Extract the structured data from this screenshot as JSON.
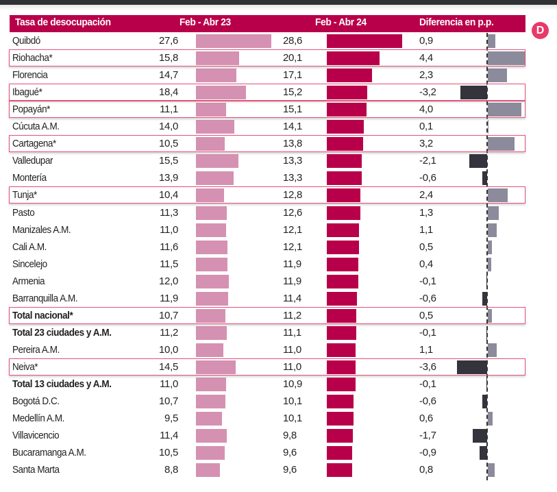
{
  "chart_data": {
    "type": "table",
    "title": "Tasa de desocupación",
    "columns": [
      "Tasa de desocupación",
      "Feb - Abr 23",
      "Feb - Abr 24",
      "Diferencia en p.p."
    ],
    "series": [
      {
        "name": "Feb - Abr 23",
        "color": "#d591b2"
      },
      {
        "name": "Feb - Abr 24",
        "color": "#b8004a"
      },
      {
        "name": "Diferencia en p.p.",
        "color_positive": "#8c8b9b",
        "color_negative": "#33343c"
      }
    ],
    "rows": [
      {
        "label": "Quibdó",
        "v23": "27,6",
        "v24": "28,6",
        "diff": "0,9",
        "bold": false,
        "highlight": false
      },
      {
        "label": "Riohacha*",
        "v23": "15,8",
        "v24": "20,1",
        "diff": "4,4",
        "bold": false,
        "highlight": true
      },
      {
        "label": "Florencia",
        "v23": "14,7",
        "v24": "17,1",
        "diff": "2,3",
        "bold": false,
        "highlight": false
      },
      {
        "label": "Ibagué*",
        "v23": "18,4",
        "v24": "15,2",
        "diff": "-3,2",
        "bold": false,
        "highlight": true
      },
      {
        "label": "Popayán*",
        "v23": "11,1",
        "v24": "15,1",
        "diff": "4,0",
        "bold": false,
        "highlight": true
      },
      {
        "label": "Cúcuta A.M.",
        "v23": "14,0",
        "v24": "14,1",
        "diff": "0,1",
        "bold": false,
        "highlight": false
      },
      {
        "label": "Cartagena*",
        "v23": "10,5",
        "v24": "13,8",
        "diff": "3,2",
        "bold": false,
        "highlight": true
      },
      {
        "label": "Valledupar",
        "v23": "15,5",
        "v24": "13,3",
        "diff": "-2,1",
        "bold": false,
        "highlight": false
      },
      {
        "label": "Montería",
        "v23": "13,9",
        "v24": "13,3",
        "diff": "-0,6",
        "bold": false,
        "highlight": false
      },
      {
        "label": "Tunja*",
        "v23": "10,4",
        "v24": "12,8",
        "diff": "2,4",
        "bold": false,
        "highlight": true
      },
      {
        "label": "Pasto",
        "v23": "11,3",
        "v24": "12,6",
        "diff": "1,3",
        "bold": false,
        "highlight": false
      },
      {
        "label": "Manizales A.M.",
        "v23": "11,0",
        "v24": "12,1",
        "diff": "1,1",
        "bold": false,
        "highlight": false
      },
      {
        "label": "Cali A.M.",
        "v23": "11,6",
        "v24": "12,1",
        "diff": "0,5",
        "bold": false,
        "highlight": false
      },
      {
        "label": "Sincelejo",
        "v23": "11,5",
        "v24": "11,9",
        "diff": "0,4",
        "bold": false,
        "highlight": false
      },
      {
        "label": "Armenia",
        "v23": "12,0",
        "v24": "11,9",
        "diff": "-0,1",
        "bold": false,
        "highlight": false
      },
      {
        "label": "Barranquilla A.M.",
        "v23": "11,9",
        "v24": "11,4",
        "diff": "-0,6",
        "bold": false,
        "highlight": false
      },
      {
        "label": "Total nacional*",
        "v23": "10,7",
        "v24": "11,2",
        "diff": "0,5",
        "bold": true,
        "highlight": true
      },
      {
        "label": "Total 23 ciudades y A.M.",
        "v23": "11,2",
        "v24": "11,1",
        "diff": "-0,1",
        "bold": true,
        "highlight": false
      },
      {
        "label": "Pereira A.M.",
        "v23": "10,0",
        "v24": "11,0",
        "diff": "1,1",
        "bold": false,
        "highlight": false
      },
      {
        "label": "Neiva*",
        "v23": "14,5",
        "v24": "11,0",
        "diff": "-3,6",
        "bold": false,
        "highlight": true
      },
      {
        "label": "Total 13 ciudades y A.M.",
        "v23": "11,0",
        "v24": "10,9",
        "diff": "-0,1",
        "bold": true,
        "highlight": false
      },
      {
        "label": "Bogotá D.C.",
        "v23": "10,7",
        "v24": "10,1",
        "diff": "-0,6",
        "bold": false,
        "highlight": false
      },
      {
        "label": "Medellín A.M.",
        "v23": "9,5",
        "v24": "10,1",
        "diff": "0,6",
        "bold": false,
        "highlight": false
      },
      {
        "label": "Villavicencio",
        "v23": "11,4",
        "v24": "9,8",
        "diff": "-1,7",
        "bold": false,
        "highlight": false
      },
      {
        "label": "Bucaramanga A.M.",
        "v23": "10,5",
        "v24": "9,6",
        "diff": "-0,9",
        "bold": false,
        "highlight": false
      },
      {
        "label": "Santa Marta",
        "v23": "8,8",
        "v24": "9,6",
        "diff": "0,8",
        "bold": false,
        "highlight": false
      }
    ]
  },
  "header": {
    "col_label": "Tasa de desocupación",
    "col_2023": "Feb - Abr 23",
    "col_2024": "Feb - Abr 24",
    "col_diff": "Diferencia en p.p."
  },
  "logo": {
    "glyph": "D",
    "color": "#e9396a"
  }
}
